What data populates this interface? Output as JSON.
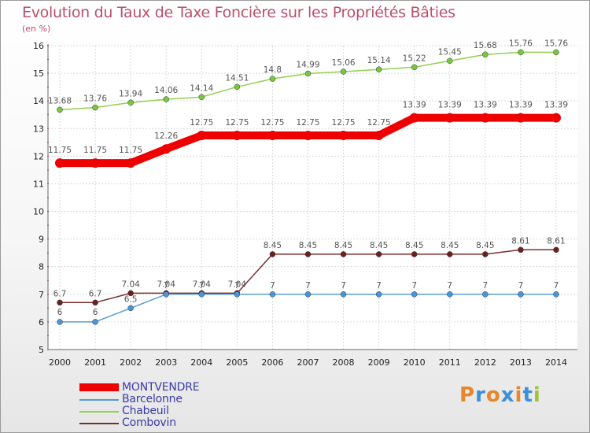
{
  "header": {
    "title": "Evolution du Taux de Taxe Foncière sur les Propriétés Bâties",
    "subtitle": "(en %)"
  },
  "logo": {
    "text": "Proxiti",
    "letter_colors": [
      "#e8862a",
      "#3d8fd6",
      "#e8862a",
      "#3d8fd6",
      "#e8862a",
      "#3d8fd6",
      "#a2c238"
    ]
  },
  "chart_data": {
    "type": "line",
    "title": "Evolution du Taux de Taxe Foncière sur les Propriétés Bâties",
    "ylabel": "(en %)",
    "xlabel": "",
    "x": [
      "2000",
      "2001",
      "2002",
      "2003",
      "2004",
      "2005",
      "2006",
      "2007",
      "2008",
      "2009",
      "2010",
      "2011",
      "2012",
      "2013",
      "2014"
    ],
    "ylim": [
      5,
      16
    ],
    "yticks": [
      "5",
      "6",
      "7",
      "8",
      "9",
      "10",
      "11",
      "12",
      "13",
      "14",
      "15",
      "16"
    ],
    "grid": true,
    "legend_position": "bottom-left",
    "series": [
      {
        "name": "MONTVENDRE",
        "color": "#ee0000",
        "marker_color": "#ee0000",
        "labels": [
          "11.75",
          "11.75",
          "11.75",
          "12.26",
          "12.75",
          "12.75",
          "12.75",
          "12.75",
          "12.75",
          "12.75",
          "13.39",
          "13.39",
          "13.39",
          "13.39",
          "13.39"
        ],
        "values": [
          11.75,
          11.75,
          11.75,
          12.26,
          12.75,
          12.75,
          12.75,
          12.75,
          12.75,
          12.75,
          13.39,
          13.39,
          13.39,
          13.39,
          13.39
        ]
      },
      {
        "name": "Barcelonne",
        "color": "#5b9bd0",
        "marker_color": "#4a94d8",
        "labels": [
          "6",
          "6",
          "6.5",
          "7",
          "7",
          "7",
          "7",
          "7",
          "7",
          "7",
          "7",
          "7",
          "7",
          "7",
          "7"
        ],
        "values": [
          6,
          6,
          6.5,
          7,
          7,
          7,
          7,
          7,
          7,
          7,
          7,
          7,
          7,
          7,
          7
        ]
      },
      {
        "name": "Chabeuil",
        "color": "#92d050",
        "marker_color": "#78c83c",
        "labels": [
          "13.68",
          "13.76",
          "13.94",
          "14.06",
          "14.14",
          "14.51",
          "14.8",
          "14.99",
          "15.06",
          "15.14",
          "15.22",
          "15.45",
          "15.68",
          "15.76",
          "15.76"
        ],
        "values": [
          13.68,
          13.76,
          13.94,
          14.06,
          14.14,
          14.51,
          14.8,
          14.99,
          15.06,
          15.14,
          15.22,
          15.45,
          15.68,
          15.76,
          15.76
        ]
      },
      {
        "name": "Combovin",
        "color": "#7a2e2e",
        "marker_color": "#6b1f1f",
        "labels": [
          "6.7",
          "6.7",
          "7.04",
          "7.04",
          "7.04",
          "7.04",
          "8.45",
          "8.45",
          "8.45",
          "8.45",
          "8.45",
          "8.45",
          "8.45",
          "8.61",
          "8.61"
        ],
        "values": [
          6.7,
          6.7,
          7.04,
          7.04,
          7.04,
          7.04,
          8.45,
          8.45,
          8.45,
          8.45,
          8.45,
          8.45,
          8.45,
          8.61,
          8.61
        ]
      }
    ]
  }
}
